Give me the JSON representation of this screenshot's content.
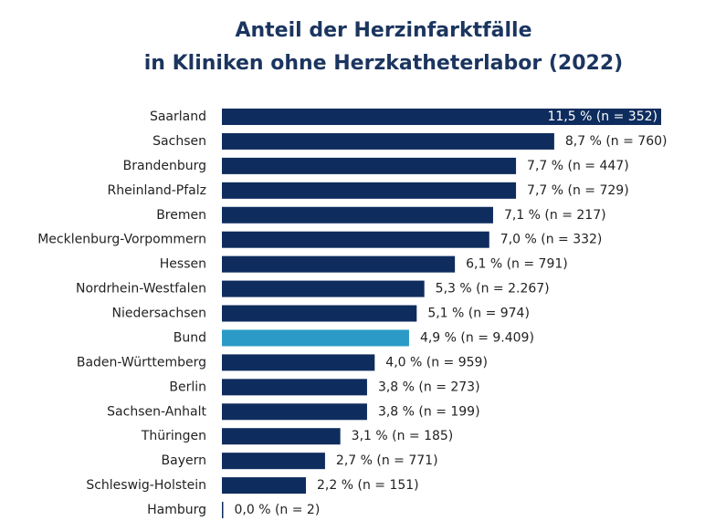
{
  "chart_data": {
    "type": "bar",
    "orientation": "horizontal",
    "title": [
      "Anteil der Herzinfarktfälle",
      "in Kliniken ohne Herzkatheterlabor (2022)"
    ],
    "categories": [
      "Saarland",
      "Sachsen",
      "Brandenburg",
      "Rheinland-Pfalz",
      "Bremen",
      "Mecklenburg-Vorpommern",
      "Hessen",
      "Nordrhein-Westfalen",
      "Niedersachsen",
      "Bund",
      "Baden-Württemberg",
      "Berlin",
      "Sachsen-Anhalt",
      "Thüringen",
      "Bayern",
      "Schleswig-Holstein",
      "Hamburg"
    ],
    "values": [
      11.5,
      8.7,
      7.7,
      7.7,
      7.1,
      7.0,
      6.1,
      5.3,
      5.1,
      4.9,
      4.0,
      3.8,
      3.8,
      3.1,
      2.7,
      2.2,
      0.0
    ],
    "value_labels": [
      "11,5 % (n = 352)",
      "8,7 % (n = 760)",
      "7,7 % (n = 447)",
      "7,7 % (n = 729)",
      "7,1 % (n = 217)",
      "7,0 % (n = 332)",
      "6,1 % (n = 791)",
      "5,3 % (n = 2.267)",
      "5,1 % (n = 974)",
      "4,9 % (n = 9.409)",
      "4,0 % (n = 959)",
      "3,8 % (n = 273)",
      "3,8 % (n = 199)",
      "3,1 % (n = 185)",
      "2,7 % (n = 771)",
      "2,2 % (n = 151)",
      "0,0 % (n = 2)"
    ],
    "colors": [
      "#0e2d5e",
      "#0e2d5e",
      "#0e2d5e",
      "#0e2d5e",
      "#0e2d5e",
      "#0e2d5e",
      "#0e2d5e",
      "#0e2d5e",
      "#0e2d5e",
      "#2b9ac6",
      "#0e2d5e",
      "#0e2d5e",
      "#0e2d5e",
      "#0e2d5e",
      "#0e2d5e",
      "#0e2d5e",
      "#0e2d5e"
    ]
  }
}
